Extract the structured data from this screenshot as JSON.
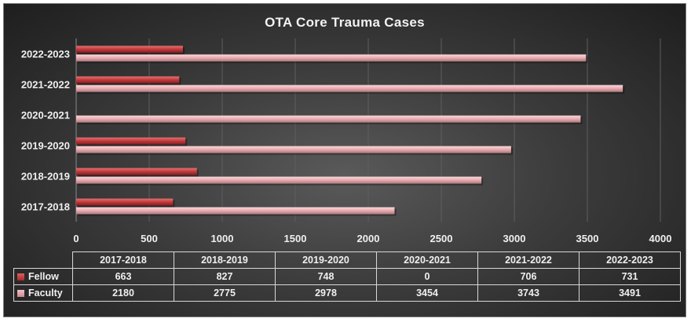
{
  "chart_data": {
    "type": "bar",
    "orientation": "horizontal",
    "title": "OTA Core Trauma Cases",
    "categories": [
      "2017-2018",
      "2018-2019",
      "2019-2020",
      "2020-2021",
      "2021-2022",
      "2022-2023"
    ],
    "series": [
      {
        "name": "Fellow",
        "values": [
          663,
          827,
          748,
          0,
          706,
          731
        ],
        "color": "#c0393b"
      },
      {
        "name": "Faculty",
        "values": [
          2180,
          2775,
          2978,
          3454,
          3743,
          3491
        ],
        "color": "#e8a9ad"
      }
    ],
    "xlim": [
      0,
      4000
    ],
    "xticks": [
      "0",
      "500",
      "1000",
      "1500",
      "2000",
      "2500",
      "3000",
      "3500",
      "4000"
    ],
    "grid": true,
    "legend": "data table"
  }
}
